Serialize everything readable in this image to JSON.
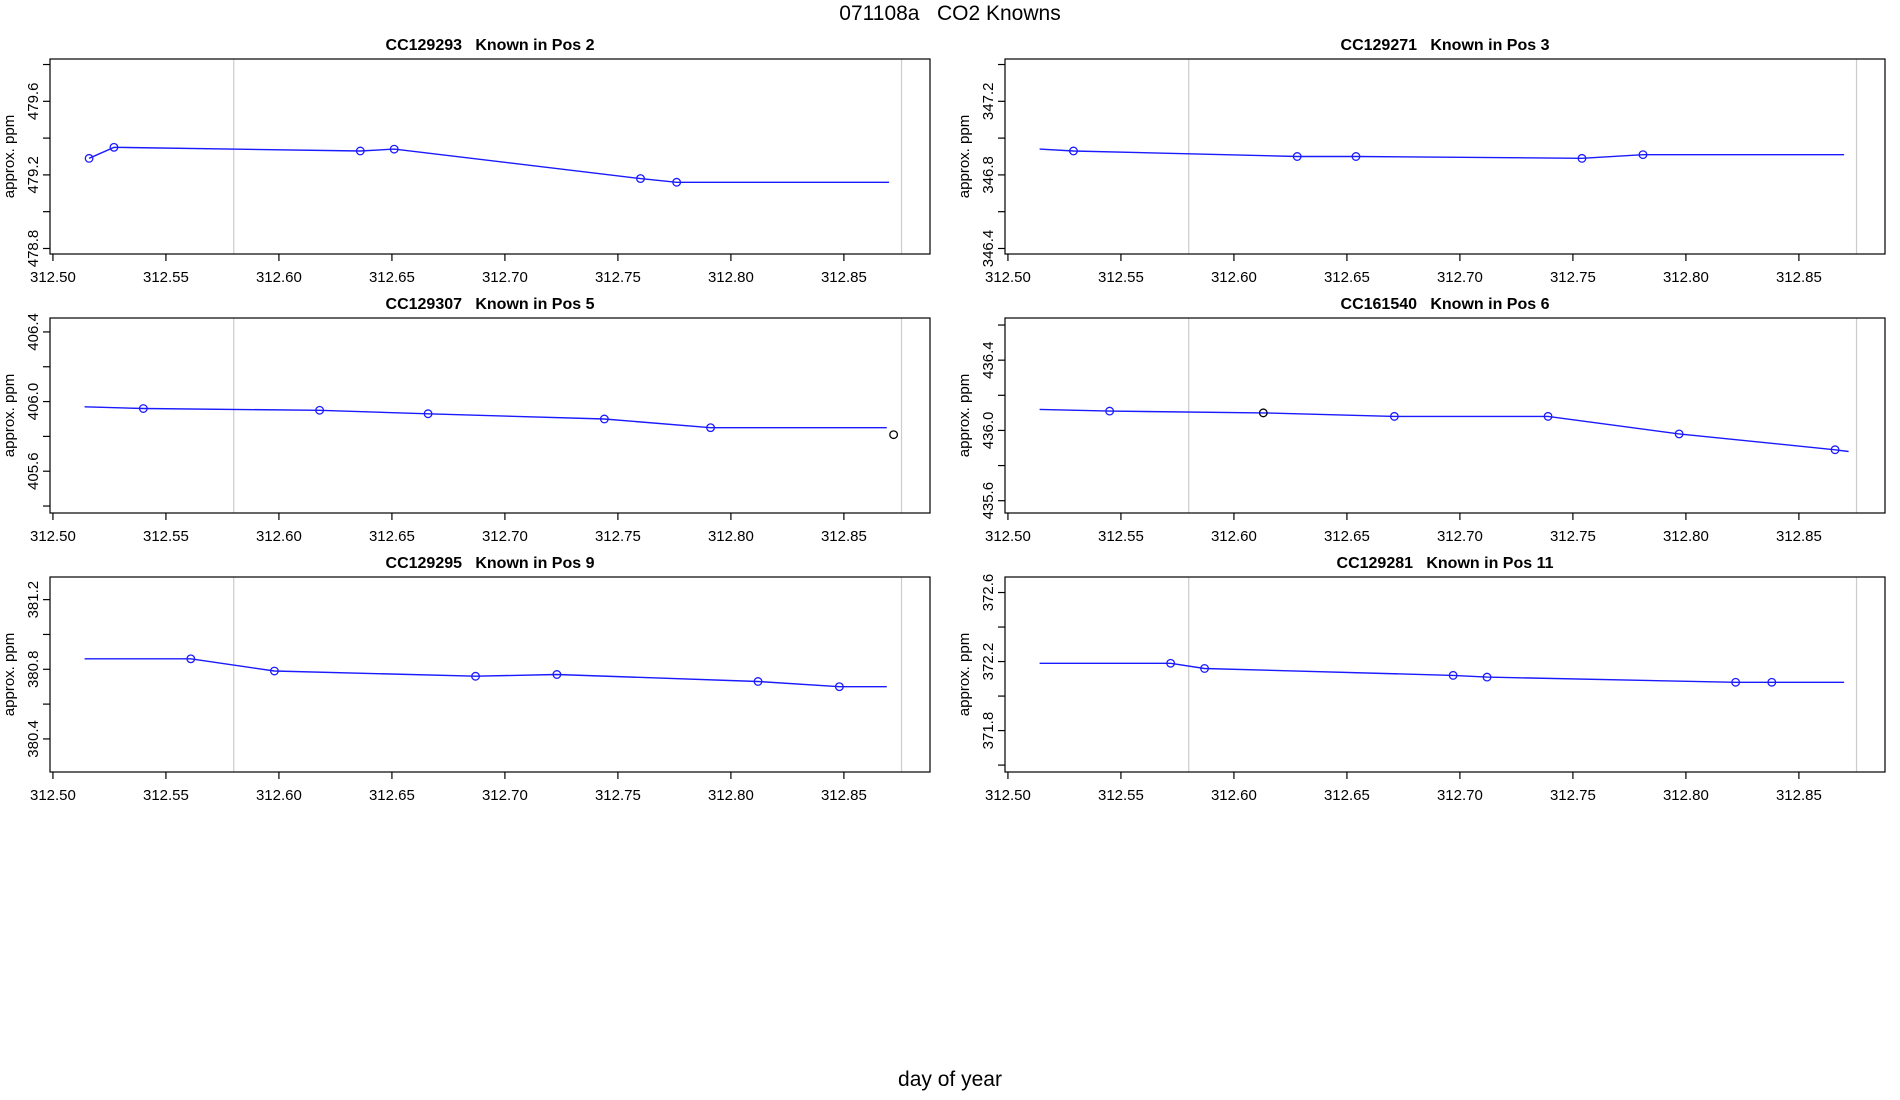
{
  "page": {
    "title": "071108a   CO2 Knowns",
    "xlabel": "day of year",
    "ylabel": "approx. ppm"
  },
  "chart_data": {
    "type": "line",
    "layout": "3x2 grid of panels",
    "grid": false,
    "x_axis": {
      "xlim": [
        312.4987,
        312.8881
      ],
      "tick_values": [
        312.5,
        312.55,
        312.6,
        312.65,
        312.7,
        312.75,
        312.8,
        312.85
      ],
      "tick_labels": [
        "312.50",
        "312.55",
        "312.60",
        "312.65",
        "312.70",
        "312.75",
        "312.80",
        "312.85"
      ]
    },
    "ref_lines_x": [
      312.58,
      312.8755
    ],
    "colors": {
      "series": "#1a1aff",
      "flagged_point": "#000000",
      "ref_line": "#cccccc",
      "frame": "#000000",
      "text": "#000000"
    },
    "y_axis_label": "approx. ppm",
    "panels": [
      {
        "id": "CC129293",
        "position_label": "Known in Pos 2",
        "title": "CC129293   Known in Pos 2",
        "ylim": [
          478.77,
          479.83
        ],
        "y_ticks": [
          478.8,
          479.0,
          479.2,
          479.4,
          479.6,
          479.8
        ],
        "y_labeled_ticks": [
          {
            "v": 478.8,
            "t": "478.8"
          },
          {
            "v": 479.2,
            "t": "479.2"
          },
          {
            "v": 479.6,
            "t": "479.6"
          }
        ],
        "line_points": [
          [
            312.516,
            479.29
          ],
          [
            312.527,
            479.35
          ],
          [
            312.636,
            479.33
          ],
          [
            312.651,
            479.34
          ],
          [
            312.76,
            479.18
          ],
          [
            312.776,
            479.16
          ],
          [
            312.87,
            479.16
          ]
        ],
        "markers": [
          {
            "x": 312.516,
            "y": 479.29,
            "color": "blue"
          },
          {
            "x": 312.527,
            "y": 479.35,
            "color": "blue"
          },
          {
            "x": 312.636,
            "y": 479.33,
            "color": "blue"
          },
          {
            "x": 312.651,
            "y": 479.34,
            "color": "blue"
          },
          {
            "x": 312.76,
            "y": 479.18,
            "color": "blue"
          },
          {
            "x": 312.776,
            "y": 479.16,
            "color": "blue"
          }
        ]
      },
      {
        "id": "CC129271",
        "position_label": "Known in Pos 3",
        "title": "CC129271   Known in Pos 3",
        "ylim": [
          346.37,
          347.43
        ],
        "y_ticks": [
          346.4,
          346.6,
          346.8,
          347.0,
          347.2,
          347.4
        ],
        "y_labeled_ticks": [
          {
            "v": 346.4,
            "t": "346.4"
          },
          {
            "v": 346.8,
            "t": "346.8"
          },
          {
            "v": 347.2,
            "t": "347.2"
          }
        ],
        "line_points": [
          [
            312.514,
            346.94
          ],
          [
            312.529,
            346.93
          ],
          [
            312.628,
            346.9
          ],
          [
            312.654,
            346.9
          ],
          [
            312.754,
            346.89
          ],
          [
            312.781,
            346.91
          ],
          [
            312.87,
            346.91
          ]
        ],
        "markers": [
          {
            "x": 312.529,
            "y": 346.93,
            "color": "blue"
          },
          {
            "x": 312.628,
            "y": 346.9,
            "color": "blue"
          },
          {
            "x": 312.654,
            "y": 346.9,
            "color": "blue"
          },
          {
            "x": 312.754,
            "y": 346.89,
            "color": "blue"
          },
          {
            "x": 312.781,
            "y": 346.91,
            "color": "blue"
          }
        ]
      },
      {
        "id": "CC129307",
        "position_label": "Known in Pos 5",
        "title": "CC129307   Known in Pos 5",
        "ylim": [
          405.36,
          406.48
        ],
        "y_ticks": [
          405.4,
          405.6,
          405.8,
          406.0,
          406.2,
          406.4
        ],
        "y_labeled_ticks": [
          {
            "v": 405.6,
            "t": "405.6"
          },
          {
            "v": 406.0,
            "t": "406.0"
          },
          {
            "v": 406.4,
            "t": "406.4"
          }
        ],
        "line_points": [
          [
            312.514,
            405.97
          ],
          [
            312.54,
            405.96
          ],
          [
            312.618,
            405.95
          ],
          [
            312.666,
            405.93
          ],
          [
            312.744,
            405.9
          ],
          [
            312.791,
            405.85
          ],
          [
            312.869,
            405.85
          ]
        ],
        "markers": [
          {
            "x": 312.54,
            "y": 405.96,
            "color": "blue"
          },
          {
            "x": 312.618,
            "y": 405.95,
            "color": "blue"
          },
          {
            "x": 312.666,
            "y": 405.93,
            "color": "blue"
          },
          {
            "x": 312.744,
            "y": 405.9,
            "color": "blue"
          },
          {
            "x": 312.791,
            "y": 405.85,
            "color": "blue"
          },
          {
            "x": 312.872,
            "y": 405.81,
            "color": "black"
          }
        ]
      },
      {
        "id": "CC161540",
        "position_label": "Known in Pos 6",
        "title": "CC161540   Known in Pos 6",
        "ylim": [
          435.53,
          436.64
        ],
        "y_ticks": [
          435.6,
          435.8,
          436.0,
          436.2,
          436.4,
          436.6
        ],
        "y_labeled_ticks": [
          {
            "v": 435.6,
            "t": "435.6"
          },
          {
            "v": 436.0,
            "t": "436.0"
          },
          {
            "v": 436.4,
            "t": "436.4"
          }
        ],
        "line_points": [
          [
            312.514,
            436.12
          ],
          [
            312.545,
            436.11
          ],
          [
            312.613,
            436.1
          ],
          [
            312.671,
            436.08
          ],
          [
            312.739,
            436.08
          ],
          [
            312.797,
            435.98
          ],
          [
            312.866,
            435.89
          ],
          [
            312.872,
            435.88
          ]
        ],
        "markers": [
          {
            "x": 312.545,
            "y": 436.11,
            "color": "blue"
          },
          {
            "x": 312.613,
            "y": 436.1,
            "color": "black"
          },
          {
            "x": 312.671,
            "y": 436.08,
            "color": "blue"
          },
          {
            "x": 312.739,
            "y": 436.08,
            "color": "blue"
          },
          {
            "x": 312.797,
            "y": 435.98,
            "color": "blue"
          },
          {
            "x": 312.866,
            "y": 435.89,
            "color": "blue"
          }
        ]
      },
      {
        "id": "CC129295",
        "position_label": "Known in Pos 9",
        "title": "CC129295   Known in Pos 9",
        "ylim": [
          380.21,
          381.33
        ],
        "y_ticks": [
          380.4,
          380.6,
          380.8,
          381.0,
          381.2
        ],
        "y_labeled_ticks": [
          {
            "v": 380.4,
            "t": "380.4"
          },
          {
            "v": 380.8,
            "t": "380.8"
          },
          {
            "v": 381.2,
            "t": "381.2"
          }
        ],
        "line_points": [
          [
            312.514,
            380.86
          ],
          [
            312.561,
            380.86
          ],
          [
            312.598,
            380.79
          ],
          [
            312.687,
            380.76
          ],
          [
            312.723,
            380.77
          ],
          [
            312.812,
            380.73
          ],
          [
            312.848,
            380.7
          ],
          [
            312.869,
            380.7
          ]
        ],
        "markers": [
          {
            "x": 312.561,
            "y": 380.86,
            "color": "blue"
          },
          {
            "x": 312.598,
            "y": 380.79,
            "color": "blue"
          },
          {
            "x": 312.687,
            "y": 380.76,
            "color": "blue"
          },
          {
            "x": 312.723,
            "y": 380.77,
            "color": "blue"
          },
          {
            "x": 312.812,
            "y": 380.73,
            "color": "blue"
          },
          {
            "x": 312.848,
            "y": 380.7,
            "color": "blue"
          }
        ]
      },
      {
        "id": "CC129281",
        "position_label": "Known in Pos 11",
        "title": "CC129281   Known in Pos 11",
        "ylim": [
          371.56,
          372.69
        ],
        "y_ticks": [
          371.6,
          371.8,
          372.0,
          372.2,
          372.4,
          372.6
        ],
        "y_labeled_ticks": [
          {
            "v": 371.8,
            "t": "371.8"
          },
          {
            "v": 372.2,
            "t": "372.2"
          },
          {
            "v": 372.6,
            "t": "372.6"
          }
        ],
        "line_points": [
          [
            312.514,
            372.19
          ],
          [
            312.572,
            372.19
          ],
          [
            312.587,
            372.16
          ],
          [
            312.697,
            372.12
          ],
          [
            312.712,
            372.11
          ],
          [
            312.822,
            372.08
          ],
          [
            312.838,
            372.08
          ],
          [
            312.87,
            372.08
          ]
        ],
        "markers": [
          {
            "x": 312.572,
            "y": 372.19,
            "color": "blue"
          },
          {
            "x": 312.587,
            "y": 372.16,
            "color": "blue"
          },
          {
            "x": 312.697,
            "y": 372.12,
            "color": "blue"
          },
          {
            "x": 312.712,
            "y": 372.11,
            "color": "blue"
          },
          {
            "x": 312.822,
            "y": 372.08,
            "color": "blue"
          },
          {
            "x": 312.838,
            "y": 372.08,
            "color": "blue"
          }
        ]
      }
    ]
  }
}
